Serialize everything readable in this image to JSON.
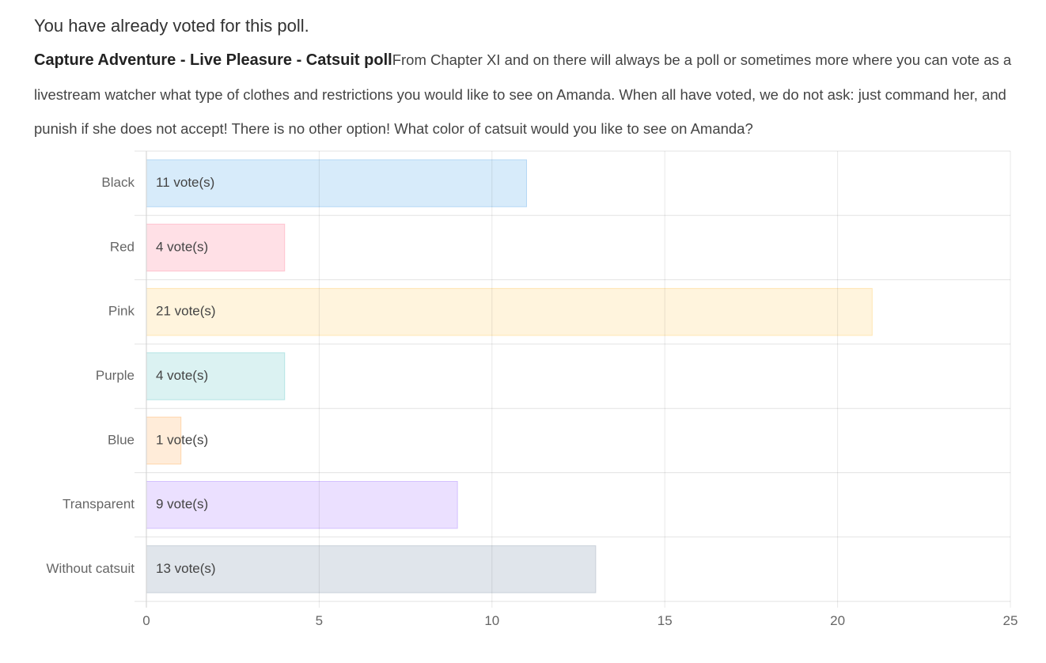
{
  "poll": {
    "notice": "You have already voted for this poll.",
    "title": "Capture Adventure - Live Pleasure - Catsuit poll",
    "description": "From Chapter XI and on there will always be a poll or sometimes more where you can vote as a livestream watcher what type of clothes and restrictions you would like to see on Amanda. When all have voted, we do not ask: just command her, and punish if she does not accept! There is no other option! What color of catsuit would you like to see on Amanda?"
  },
  "chart_data": {
    "type": "bar",
    "orientation": "horizontal",
    "categories": [
      "Black",
      "Red",
      "Pink",
      "Purple",
      "Blue",
      "Transparent",
      "Without catsuit"
    ],
    "values": [
      11,
      4,
      21,
      4,
      1,
      9,
      13
    ],
    "data_labels": [
      "11 vote(s)",
      "4 vote(s)",
      "21 vote(s)",
      "4 vote(s)",
      "1 vote(s)",
      "9 vote(s)",
      "13 vote(s)"
    ],
    "xlim": [
      0,
      25
    ],
    "xticks": [
      0,
      5,
      10,
      15,
      20,
      25
    ],
    "grid": true,
    "bar_fill_colors": [
      "#d7ebfa",
      "#ffe0e6",
      "#fff4dd",
      "#dbf2f2",
      "#ffecd9",
      "#ebe0ff",
      "#e0e5eb"
    ],
    "bar_edge_colors": [
      "#b5d8f5",
      "#ffc3cf",
      "#ffe6b3",
      "#b5e4e4",
      "#ffd6ad",
      "#d4c1ff",
      "#c9d0d9"
    ]
  }
}
